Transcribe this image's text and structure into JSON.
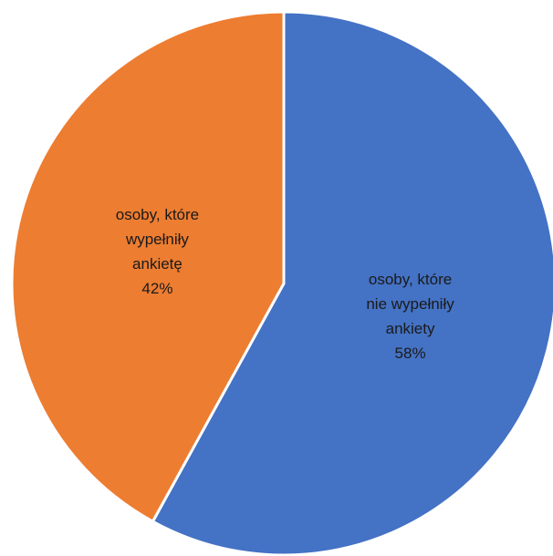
{
  "chart_data": {
    "type": "pie",
    "title": "",
    "legend": "none",
    "slices": [
      {
        "label_lines": [
          "osoby, które",
          "nie wypełniły",
          "ankiety"
        ],
        "percent_label": "58%",
        "value": 58,
        "color": "#4472C4"
      },
      {
        "label_lines": [
          "osoby, które",
          "wypełniły",
          "ankietę"
        ],
        "percent_label": "42%",
        "value": 42,
        "color": "#ED7D31"
      }
    ]
  }
}
